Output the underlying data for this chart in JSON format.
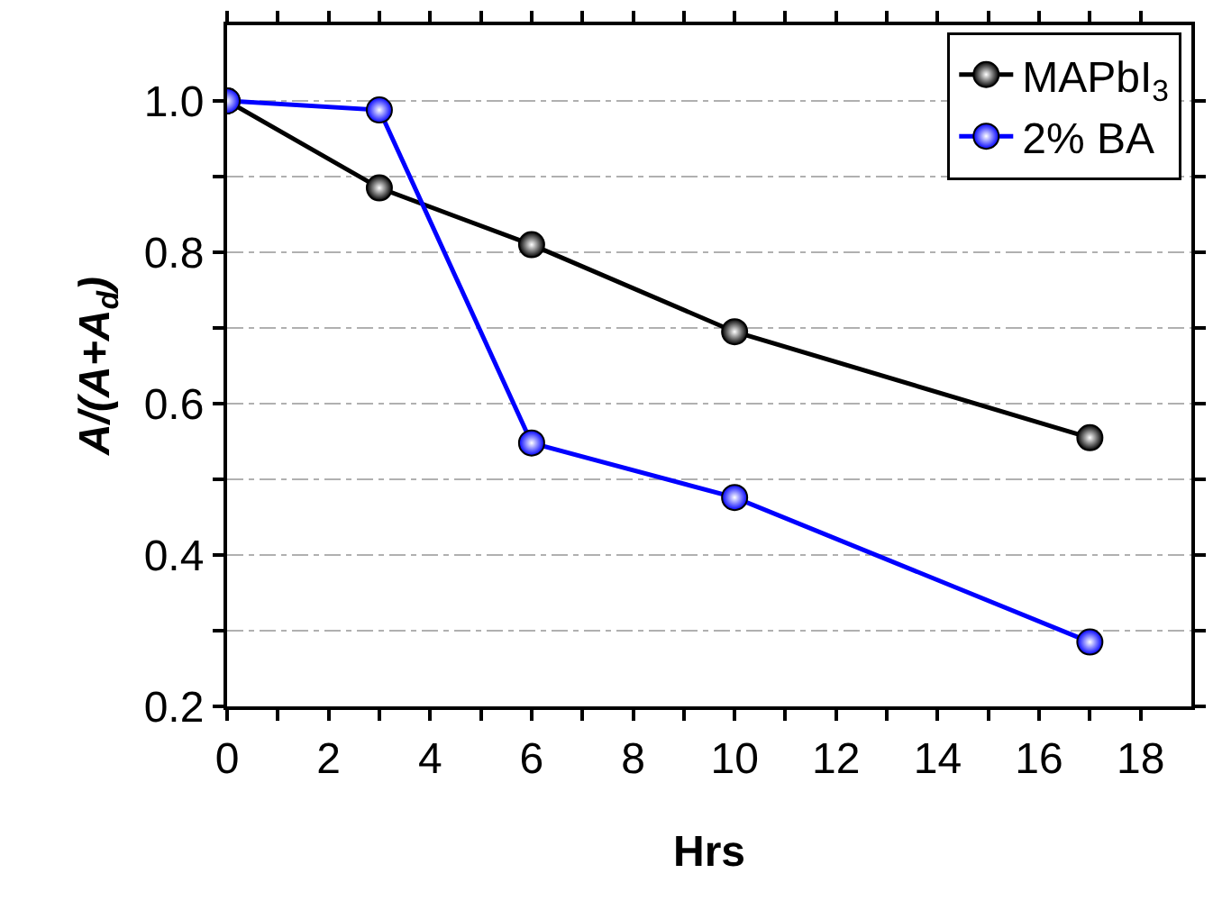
{
  "chart_data": {
    "type": "line",
    "xlabel": "Hrs",
    "ylabel": "A/(A+A$_{d}$)",
    "x": [
      0,
      3,
      6,
      10,
      17
    ],
    "series": [
      {
        "name": "MAPbI$_{3}$",
        "color": "#000000",
        "values": [
          1.0,
          0.885,
          0.81,
          0.695,
          0.555
        ]
      },
      {
        "name": "2% BA",
        "color": "#0000ff",
        "values": [
          1.0,
          0.988,
          0.548,
          0.476,
          0.285
        ]
      }
    ],
    "xlim": [
      0,
      19
    ],
    "ylim": [
      0.2,
      1.1
    ],
    "xticks": [
      0,
      {
        "value": 1,
        "label": null
      },
      2,
      {
        "value": 3,
        "label": null
      },
      4,
      {
        "value": 5,
        "label": null
      },
      6,
      {
        "value": 7,
        "label": null
      },
      8,
      {
        "value": 9,
        "label": null
      },
      10,
      {
        "value": 11,
        "label": null
      },
      12,
      {
        "value": 13,
        "label": null
      },
      14,
      {
        "value": 15,
        "label": null
      },
      16,
      {
        "value": 17,
        "label": null
      },
      18
    ],
    "yticks": [
      {
        "value": 0.2,
        "label": "0.2"
      },
      {
        "value": 0.3,
        "label": null
      },
      {
        "value": 0.4,
        "label": "0.4"
      },
      {
        "value": 0.5,
        "label": null
      },
      {
        "value": 0.6,
        "label": "0.6"
      },
      {
        "value": 0.7,
        "label": null
      },
      {
        "value": 0.8,
        "label": "0.8"
      },
      {
        "value": 0.9,
        "label": null
      },
      {
        "value": 1.0,
        "label": "1.0"
      }
    ],
    "grid": "y",
    "legend": "top right",
    "marker": "circle",
    "line_style": "solid"
  }
}
